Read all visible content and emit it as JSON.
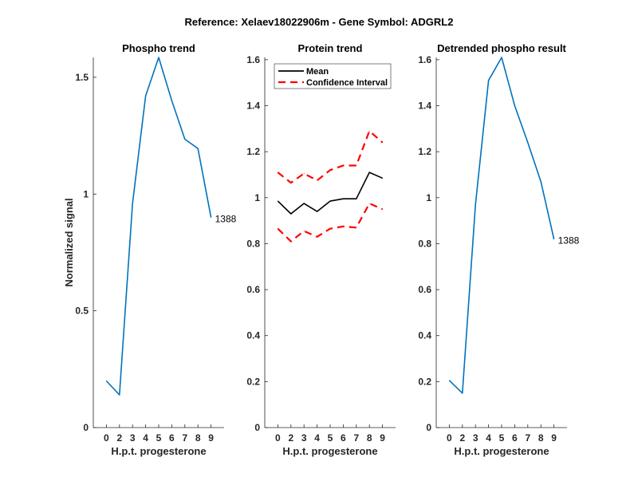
{
  "figure_title": "Reference:  Xelaev18022906m - Gene Symbol:  ADGRL2",
  "chart_data": [
    {
      "type": "line",
      "title": "Phospho trend",
      "xlabel": "H.p.t. progesterone",
      "ylabel": "Normalized signal",
      "categories": [
        "0",
        "2",
        "3",
        "4",
        "5",
        "6",
        "7",
        "8",
        "9"
      ],
      "ylim": [
        0,
        1.585
      ],
      "yticks": [
        0,
        0.5,
        1,
        1.5
      ],
      "ytick_labels": [
        "0",
        "0.5",
        "1",
        "1.5"
      ],
      "series": [
        {
          "name": "1388",
          "color": "#0072BD",
          "style": "solid",
          "values": [
            0.2,
            0.14,
            0.96,
            1.42,
            1.585,
            1.4,
            1.235,
            1.195,
            0.9
          ]
        }
      ],
      "annotation": "1388",
      "legend": null
    },
    {
      "type": "line",
      "title": "Protein trend",
      "xlabel": "H.p.t. progesterone",
      "ylabel": "",
      "categories": [
        "0",
        "2",
        "3",
        "4",
        "5",
        "6",
        "7",
        "8",
        "9"
      ],
      "ylim": [
        0,
        1.61
      ],
      "yticks": [
        0,
        0.2,
        0.4,
        0.6,
        0.8,
        1,
        1.2,
        1.4,
        1.6
      ],
      "ytick_labels": [
        "0",
        "0.2",
        "0.4",
        "0.6",
        "0.8",
        "1",
        "1.2",
        "1.4",
        "1.6"
      ],
      "series": [
        {
          "name": "Mean",
          "color": "#000000",
          "style": "solid",
          "values": [
            0.985,
            0.93,
            0.975,
            0.94,
            0.985,
            0.995,
            0.995,
            1.11,
            1.085
          ]
        },
        {
          "name": "Confidence Interval",
          "color": "#FF0000",
          "style": "dashed",
          "values": [
            1.11,
            1.065,
            1.105,
            1.075,
            1.12,
            1.14,
            1.14,
            1.29,
            1.24
          ]
        },
        {
          "name": "Confidence Interval (lower)",
          "color": "#FF0000",
          "style": "dashed",
          "values": [
            0.865,
            0.81,
            0.855,
            0.83,
            0.865,
            0.875,
            0.87,
            0.975,
            0.95
          ]
        }
      ],
      "legend": {
        "placement": "top-left",
        "entries": [
          "Mean",
          "Confidence Interval"
        ]
      }
    },
    {
      "type": "line",
      "title": "Detrended phospho result",
      "xlabel": "H.p.t. progesterone",
      "ylabel": "",
      "categories": [
        "0",
        "2",
        "3",
        "4",
        "5",
        "6",
        "7",
        "8",
        "9"
      ],
      "ylim": [
        0,
        1.61
      ],
      "yticks": [
        0,
        0.2,
        0.4,
        0.6,
        0.8,
        1,
        1.2,
        1.4,
        1.6
      ],
      "ytick_labels": [
        "0",
        "0.2",
        "0.4",
        "0.6",
        "0.8",
        "1",
        "1.2",
        "1.4",
        "1.6"
      ],
      "series": [
        {
          "name": "1388",
          "color": "#0072BD",
          "style": "solid",
          "values": [
            0.205,
            0.15,
            0.97,
            1.51,
            1.61,
            1.4,
            1.24,
            1.07,
            0.82
          ]
        }
      ],
      "annotation": "1388",
      "legend": null
    }
  ]
}
